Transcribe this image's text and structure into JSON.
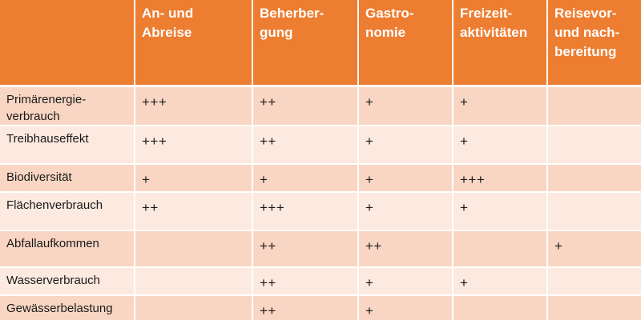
{
  "table": {
    "headers": [
      "",
      "An- und\nAbreise",
      "Beherber-\ngung",
      "Gastro-\nnomie",
      "Freizeit-\naktivitäten",
      "Reisevor-\nund nach-\nbereitung"
    ],
    "rows": [
      [
        "Primärenergie-\nverbrauch",
        "+++",
        "++",
        "+",
        "+",
        ""
      ],
      [
        "Treibhauseffekt",
        "+++",
        "++",
        "+",
        "+",
        ""
      ],
      [
        "Biodiversität",
        "+",
        "+",
        "+",
        "+++",
        ""
      ],
      [
        "Flächenverbrauch",
        "++",
        "+++",
        "+",
        "+",
        ""
      ],
      [
        "Abfallaufkommen",
        "",
        "++",
        "++",
        "",
        "+"
      ],
      [
        "Wasserverbrauch",
        "",
        "++",
        "+",
        "+",
        ""
      ],
      [
        "Gewässerbelastung",
        "",
        "++",
        "+",
        "",
        ""
      ]
    ]
  },
  "colors": {
    "header_bg": "#ed7d31",
    "row_odd_bg": "#f9d6c3",
    "row_even_bg": "#fce9df"
  }
}
